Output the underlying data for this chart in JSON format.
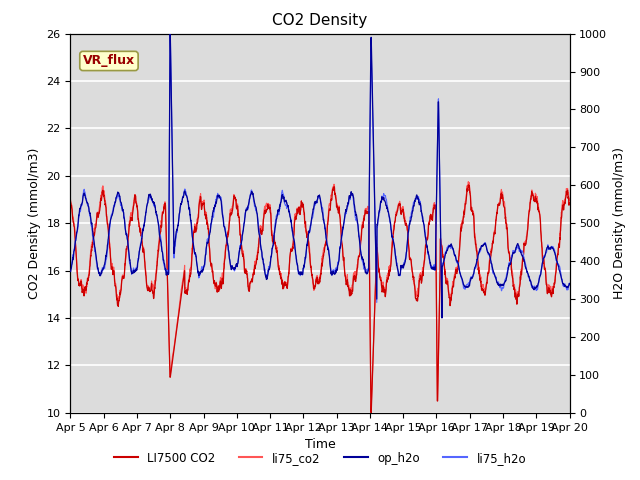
{
  "title": "CO2 Density",
  "xlabel": "Time",
  "ylabel_left": "CO2 Density (mmol/m3)",
  "ylabel_right": "H2O Density (mmol/m3)",
  "ylim_left": [
    10,
    26
  ],
  "ylim_right": [
    0,
    1000
  ],
  "yticks_left": [
    10,
    12,
    14,
    16,
    18,
    20,
    22,
    24,
    26
  ],
  "yticks_right": [
    0,
    100,
    200,
    300,
    400,
    500,
    600,
    700,
    800,
    900,
    1000
  ],
  "plot_bg_color": "#dcdcdc",
  "fig_bg_color": "#ffffff",
  "co2_color1": "#cc0000",
  "co2_color2": "#ff5555",
  "h2o_color1": "#000099",
  "h2o_color2": "#5566ff",
  "vr_flux_label": "VR_flux",
  "vr_flux_text_color": "#990000",
  "vr_flux_bg": "#ffffcc",
  "vr_flux_edge": "#999944",
  "legend_labels": [
    "LI7500 CO2",
    "li75_co2",
    "op_h2o",
    "li75_h2o"
  ],
  "n_points": 2160,
  "seed": 77
}
